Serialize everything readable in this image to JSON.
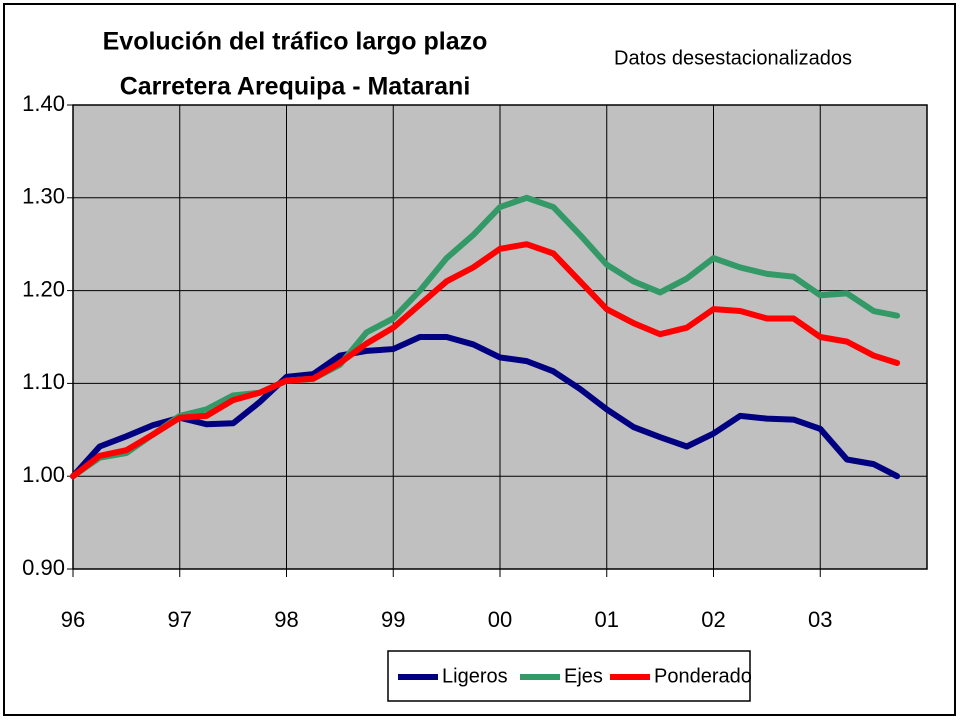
{
  "chart_data": {
    "type": "line",
    "title": [
      "Evolución del tráfico largo plazo",
      "Carretera Arequipa - Matarani"
    ],
    "subtitle": "Datos desestacionalizados",
    "x": [
      1996,
      1996.25,
      1996.5,
      1996.75,
      1997,
      1997.25,
      1997.5,
      1997.75,
      1998,
      1998.25,
      1998.5,
      1998.75,
      1999,
      1999.25,
      1999.5,
      1999.75,
      2000,
      2000.25,
      2000.5,
      2000.75,
      2001,
      2001.25,
      2001.5,
      2001.75,
      2002,
      2002.25,
      2002.5,
      2002.75,
      2003,
      2003.25,
      2003.5,
      2003.72
    ],
    "series": [
      {
        "name": "Ligeros",
        "color": "#000080",
        "values": [
          1.0,
          1.032,
          1.043,
          1.055,
          1.063,
          1.056,
          1.057,
          1.08,
          1.107,
          1.11,
          1.13,
          1.135,
          1.137,
          1.15,
          1.15,
          1.142,
          1.128,
          1.124,
          1.113,
          1.094,
          1.072,
          1.053,
          1.042,
          1.032,
          1.046,
          1.065,
          1.062,
          1.061,
          1.051,
          1.018,
          1.013,
          1.0
        ]
      },
      {
        "name": "Ejes",
        "color": "#339966",
        "values": [
          1.0,
          1.02,
          1.025,
          1.045,
          1.065,
          1.072,
          1.087,
          1.09,
          1.103,
          1.105,
          1.12,
          1.155,
          1.17,
          1.2,
          1.235,
          1.26,
          1.29,
          1.3,
          1.29,
          1.26,
          1.228,
          1.21,
          1.198,
          1.213,
          1.235,
          1.225,
          1.218,
          1.215,
          1.195,
          1.197,
          1.178,
          1.173
        ]
      },
      {
        "name": "Ponderado",
        "color": "#ff0000",
        "values": [
          1.0,
          1.022,
          1.028,
          1.045,
          1.063,
          1.065,
          1.082,
          1.09,
          1.103,
          1.105,
          1.122,
          1.143,
          1.16,
          1.185,
          1.21,
          1.225,
          1.245,
          1.25,
          1.24,
          1.21,
          1.18,
          1.165,
          1.153,
          1.16,
          1.18,
          1.178,
          1.17,
          1.17,
          1.15,
          1.145,
          1.13,
          1.122
        ]
      }
    ],
    "xlim": [
      1996,
      2004
    ],
    "xticks": [
      {
        "value": 1996,
        "label": "96"
      },
      {
        "value": 1997,
        "label": "97"
      },
      {
        "value": 1998,
        "label": "98"
      },
      {
        "value": 1999,
        "label": "99"
      },
      {
        "value": 2000,
        "label": "00"
      },
      {
        "value": 2001,
        "label": "01"
      },
      {
        "value": 2002,
        "label": "02"
      },
      {
        "value": 2003,
        "label": "03"
      }
    ],
    "ylim": [
      0.9,
      1.4
    ],
    "yticks": [
      {
        "value": 0.9,
        "label": "0.90"
      },
      {
        "value": 1.0,
        "label": "1.00"
      },
      {
        "value": 1.1,
        "label": "1.10"
      },
      {
        "value": 1.2,
        "label": "1.20"
      },
      {
        "value": 1.3,
        "label": "1.30"
      },
      {
        "value": 1.4,
        "label": "1.40"
      }
    ],
    "grid": true,
    "legend": "bottom"
  }
}
